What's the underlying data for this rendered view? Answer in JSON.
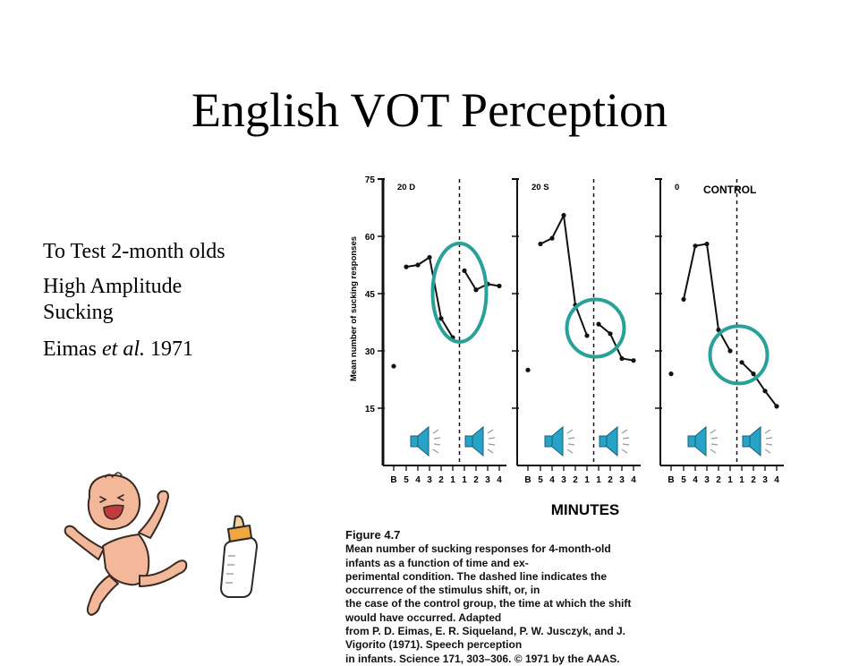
{
  "slide": {
    "title": "English VOT Perception",
    "bullets": {
      "line1": "To Test 2-month olds",
      "line2a": "High Amplitude",
      "line2b": "Sucking",
      "line3_prefix": "Eimas ",
      "line3_italic": "et al.",
      "line3_suffix": " 1971"
    }
  },
  "figure": {
    "caption_title": "Figure 4.7",
    "caption_lines": [
      "Mean number of sucking responses for 4-month-old infants as a function of time and ex-",
      "perimental condition. The dashed line indicates the occurrence of the stimulus shift, or, in",
      "the case of the control group, the time at which the shift would have occurred. Adapted",
      "from P. D. Eimas, E. R. Siqueland, P. W. Jusczyk, and J. Vigorito (1971). Speech perception",
      "in infants. Science 171, 303–306. © 1971 by the AAAS."
    ]
  },
  "chart_data": {
    "type": "line",
    "ylabel": "Mean number of sucking responses",
    "xlabel": "MINUTES",
    "ylim": [
      0,
      75
    ],
    "yticks": [
      15,
      30,
      45,
      60,
      75
    ],
    "xtick_labels": [
      "B",
      "5",
      "4",
      "3",
      "2",
      "1",
      "1",
      "2",
      "3",
      "4"
    ],
    "panels": [
      {
        "label": "20 D",
        "baseline": 26,
        "pre": [
          52,
          52.5,
          54.5,
          38.5,
          33.5
        ],
        "post": [
          51,
          46,
          47.5,
          47
        ]
      },
      {
        "label": "20 S",
        "baseline": 25,
        "pre": [
          58,
          59.5,
          65.5,
          42,
          34
        ],
        "post": [
          37,
          34.5,
          28,
          27.5
        ]
      },
      {
        "label": "0",
        "label2": "CONTROL",
        "baseline": 24,
        "pre": [
          43.5,
          57.5,
          58,
          35.5,
          30
        ],
        "post": [
          27,
          24,
          19.5,
          15.5
        ]
      }
    ],
    "highlight_color": "#2aa198",
    "colors": {
      "highlight": "#2aa198",
      "speaker": "#27a3c8"
    }
  }
}
